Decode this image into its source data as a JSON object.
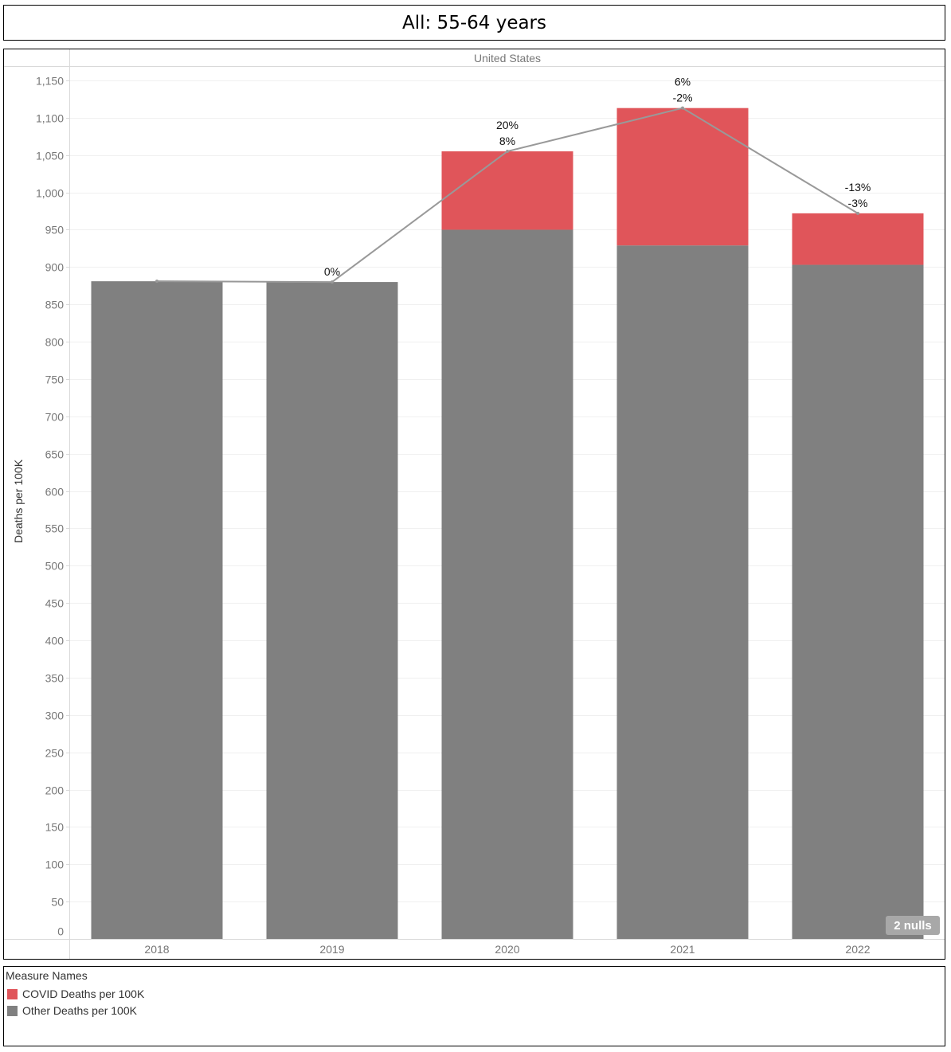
{
  "title": "All: 55-64 years",
  "chart_data": {
    "type": "bar",
    "stacked": true,
    "panel_label": "United States",
    "categories": [
      "2018",
      "2019",
      "2020",
      "2021",
      "2022"
    ],
    "series": [
      {
        "name": "Other Deaths per 100K",
        "color": "#808080",
        "values": [
          881,
          880,
          950,
          929,
          903
        ]
      },
      {
        "name": "COVID Deaths per 100K",
        "color": "#e0555a",
        "values": [
          0,
          0,
          105,
          184,
          69
        ]
      }
    ],
    "line": {
      "color": "#999999",
      "values": [
        881,
        880,
        1055,
        1113,
        972
      ],
      "labels": [
        [],
        [
          "0%"
        ],
        [
          "20%",
          "8%"
        ],
        [
          "6%",
          "-2%"
        ],
        [
          "-13%",
          "-3%"
        ]
      ]
    },
    "ylabel": "Deaths per 100K",
    "ylim": [
      0,
      1150
    ],
    "yticks": [
      0,
      50,
      100,
      150,
      200,
      250,
      300,
      350,
      400,
      450,
      500,
      550,
      600,
      650,
      700,
      750,
      800,
      850,
      900,
      950,
      1000,
      1050,
      1100,
      1150
    ],
    "ytick_labels": [
      "0",
      "50",
      "100",
      "150",
      "200",
      "250",
      "300",
      "350",
      "400",
      "450",
      "500",
      "550",
      "600",
      "650",
      "700",
      "750",
      "800",
      "850",
      "900",
      "950",
      "1,000",
      "1,050",
      "1,100",
      "1,150"
    ],
    "nulls_badge": "2 nulls",
    "grid": true,
    "legend_title": "Measure Names",
    "legend": [
      {
        "label": "COVID Deaths per 100K",
        "color": "#e0555a"
      },
      {
        "label": "Other Deaths per 100K",
        "color": "#808080"
      }
    ]
  }
}
